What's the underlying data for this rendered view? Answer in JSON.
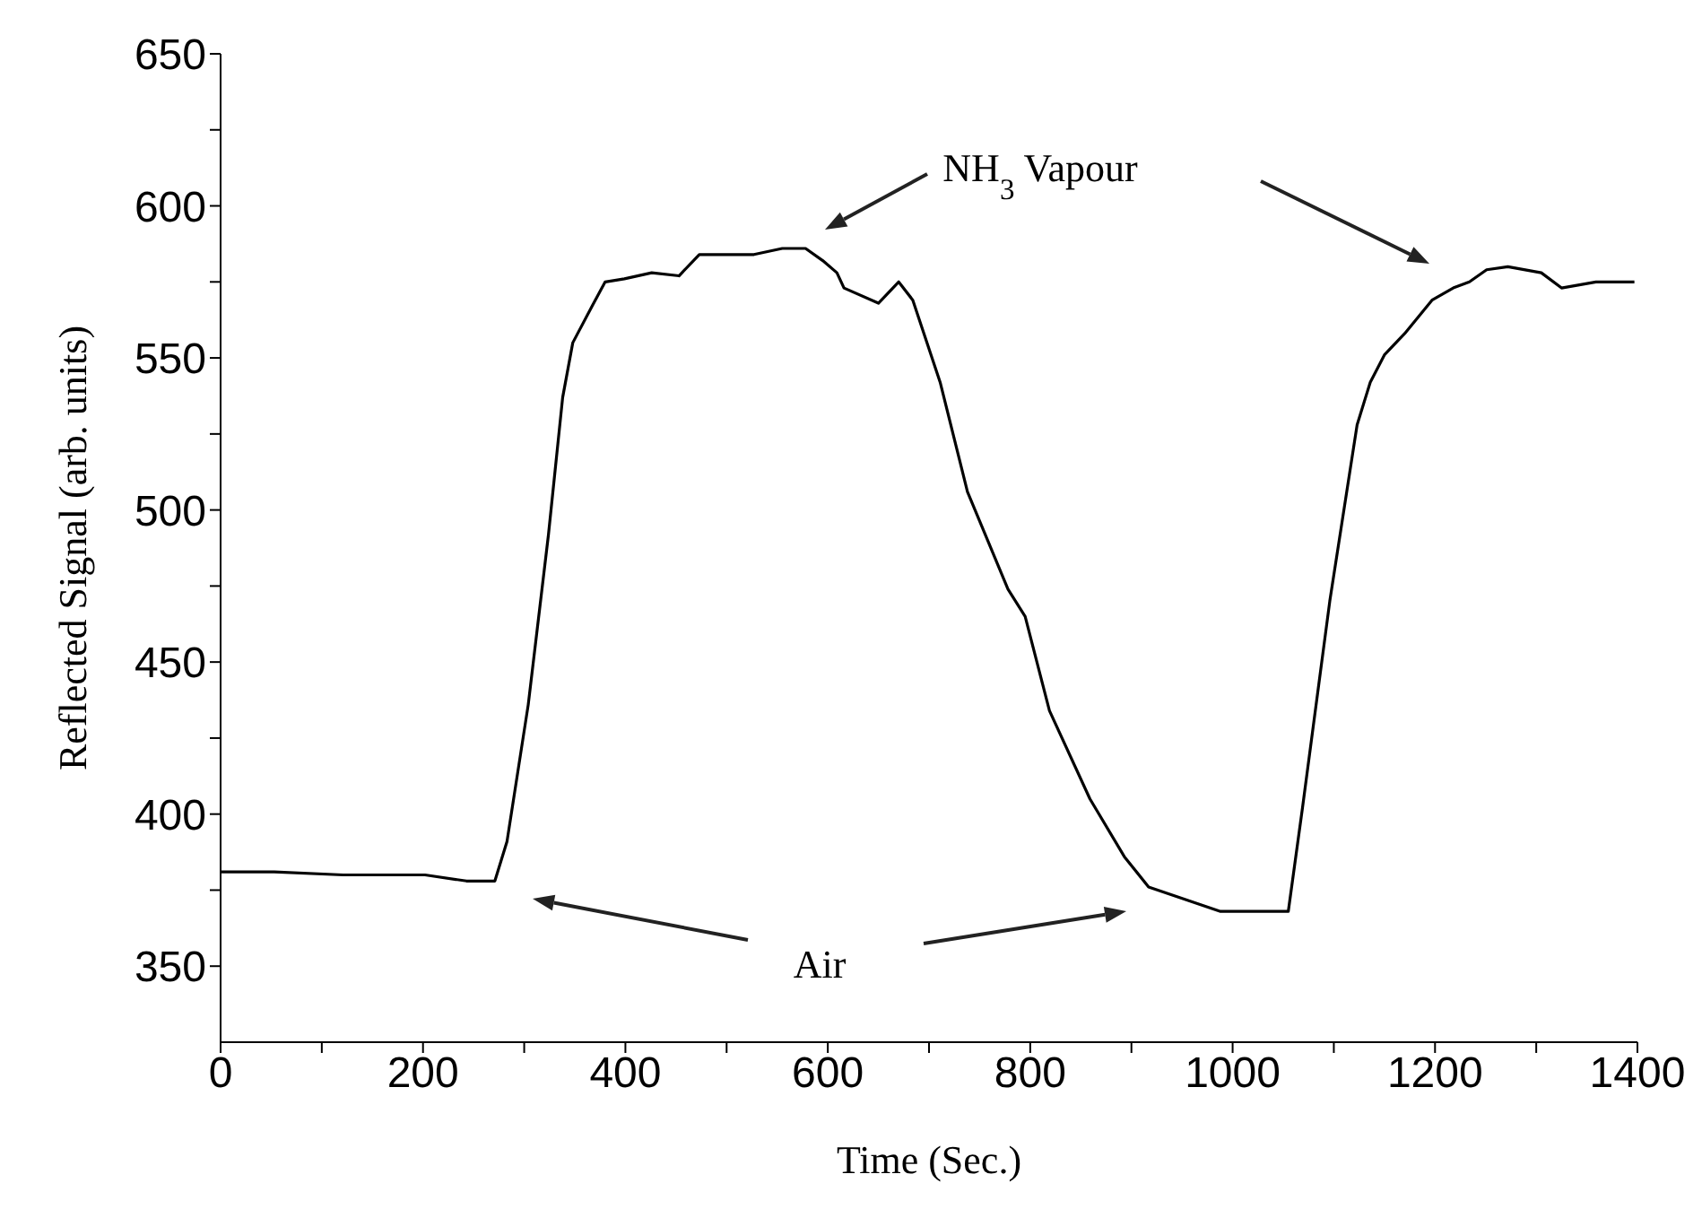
{
  "chart_data": {
    "type": "line",
    "xlabel": "Time (Sec.)",
    "ylabel": "Reflected Signal (arb. units)",
    "x": [
      0,
      53,
      121,
      202,
      243,
      271,
      283,
      304,
      324,
      338,
      348,
      367,
      380,
      399,
      426,
      453,
      473,
      527,
      555,
      578,
      595,
      609,
      616,
      650,
      670,
      684,
      711,
      738,
      778,
      795,
      819,
      859,
      893,
      917,
      988,
      1055,
      1069,
      1096,
      1123,
      1136,
      1150,
      1170,
      1197,
      1218,
      1234,
      1251,
      1272,
      1305,
      1325,
      1359,
      1397
    ],
    "series": [
      {
        "color": "#000000",
        "values": [
          381,
          381,
          380,
          380,
          378,
          378,
          391,
          436,
          492,
          537,
          555,
          567,
          575,
          576,
          578,
          577,
          584,
          584,
          586,
          586,
          582,
          578,
          573,
          568,
          575,
          569,
          542,
          506,
          474,
          465,
          434,
          405,
          386,
          376,
          368,
          368,
          402,
          470,
          528,
          542,
          551,
          558,
          569,
          573,
          575,
          579,
          580,
          578,
          573,
          575,
          575
        ]
      }
    ],
    "xlim": [
      0,
      1400
    ],
    "xticks": [
      0,
      {
        "value": 100,
        "label": null
      },
      200,
      {
        "value": 300,
        "label": null
      },
      400,
      {
        "value": 500,
        "label": null
      },
      600,
      {
        "value": 700,
        "label": null
      },
      800,
      {
        "value": 900,
        "label": null
      },
      1000,
      {
        "value": 1100,
        "label": null
      },
      1200,
      {
        "value": 1300,
        "label": null
      },
      1400
    ],
    "ylim": [
      325,
      650
    ],
    "yticks": [
      350,
      {
        "value": 375,
        "label": null
      },
      400,
      {
        "value": 425,
        "label": null
      },
      450,
      {
        "value": 475,
        "label": null
      },
      500,
      {
        "value": 525,
        "label": null
      },
      550,
      {
        "value": 575,
        "label": null
      },
      600,
      {
        "value": 625,
        "label": null
      },
      650
    ],
    "annotations": [
      "NH$_{3}$ Vapour",
      "Air"
    ],
    "grid": false,
    "legend": false,
    "marker": "none",
    "line_style": "solid"
  }
}
